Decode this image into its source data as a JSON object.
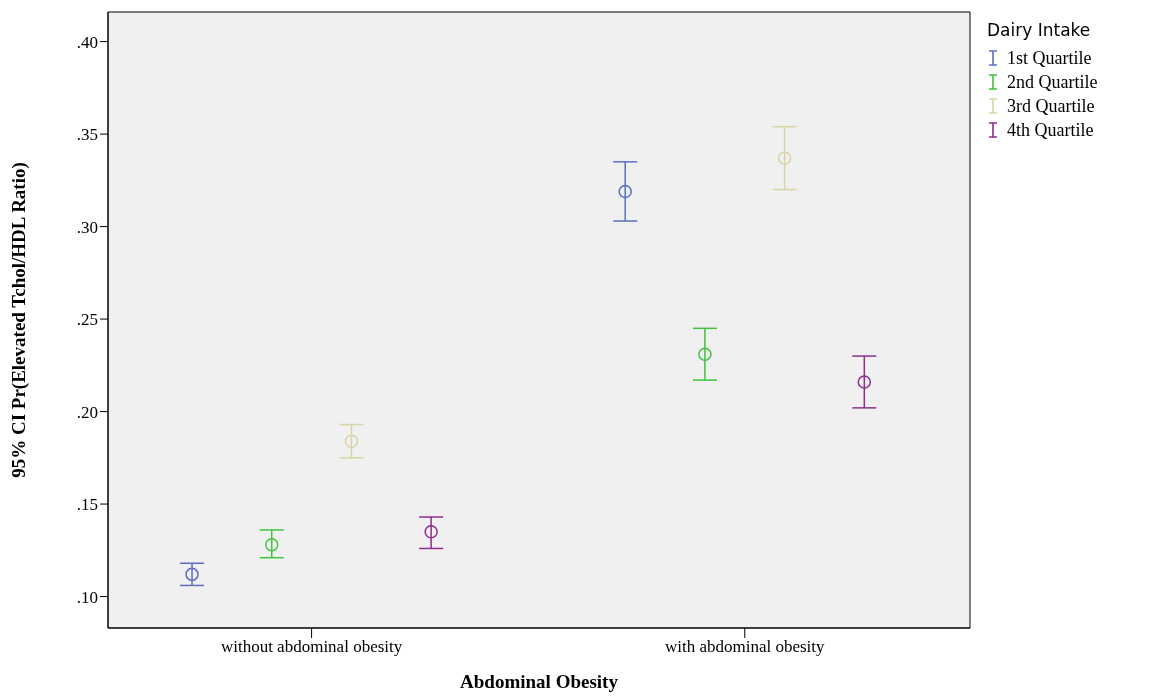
{
  "chart_data": {
    "type": "scatter",
    "xlabel": "Abdominal Obesity",
    "ylabel": "95% CI Pr(Elevated Tchol/HDL Ratio)",
    "legend_title": "Dairy Intake",
    "categories": [
      "without abdominal obesity",
      "with abdominal obesity"
    ],
    "series": [
      {
        "name": "1st Quartile",
        "color": "#5a6fc4",
        "values": [
          0.112,
          0.319
        ],
        "errors": [
          [
            0.106,
            0.118
          ],
          [
            0.303,
            0.335
          ]
        ]
      },
      {
        "name": "2nd Quartile",
        "color": "#3ec43e",
        "values": [
          0.128,
          0.231
        ],
        "errors": [
          [
            0.121,
            0.136
          ],
          [
            0.217,
            0.245
          ]
        ]
      },
      {
        "name": "3rd Quartile",
        "color": "#d9d4a4",
        "values": [
          0.184,
          0.337
        ],
        "errors": [
          [
            0.175,
            0.193
          ],
          [
            0.32,
            0.354
          ]
        ]
      },
      {
        "name": "4th Quartile",
        "color": "#8e2d8e",
        "values": [
          0.135,
          0.216
        ],
        "errors": [
          [
            0.126,
            0.143
          ],
          [
            0.202,
            0.23
          ]
        ]
      }
    ],
    "ylim": [
      0.083,
      0.416
    ],
    "yticks": [
      {
        "value": 0.1,
        "label": ".10"
      },
      {
        "value": 0.15,
        "label": ".15"
      },
      {
        "value": 0.2,
        "label": ".20"
      },
      {
        "value": 0.25,
        "label": ".25"
      },
      {
        "value": 0.3,
        "label": ".30"
      },
      {
        "value": 0.35,
        "label": ".35"
      },
      {
        "value": 0.4,
        "label": ".40"
      }
    ],
    "marker": "circle",
    "grid": false,
    "legend": "top right"
  }
}
